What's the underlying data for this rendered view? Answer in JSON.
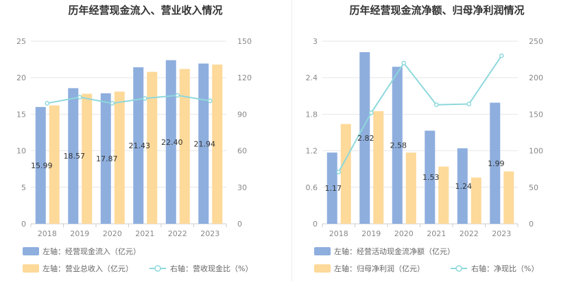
{
  "charts": [
    {
      "title": "历年经营现金流入、营业收入情况",
      "legend": {
        "bar1": "左轴：经营现金流入（亿元）",
        "bar2": "左轴：营业总收入（亿元）",
        "line": "右轴：营收现金比（%）"
      }
    },
    {
      "title": "历年经营现金流净额、归母净利润情况",
      "legend": {
        "bar1": "左轴：经营活动现金流净额（亿元）",
        "bar2": "左轴：归母净利润（亿元）",
        "line": "右轴：净现比（%）"
      }
    }
  ],
  "colors": {
    "bar1": "#8eaede",
    "bar2": "#fdd99a",
    "line": "#8dd8dc",
    "grid": "#e6e6e6",
    "axis": "#cccccc"
  },
  "chart_data": [
    {
      "type": "bar",
      "title": "历年经营现金流入、营业收入情况",
      "categories": [
        "2018",
        "2019",
        "2020",
        "2021",
        "2022",
        "2023"
      ],
      "series": [
        {
          "name": "左轴：经营现金流入（亿元）",
          "axis": "left",
          "values": [
            15.99,
            18.57,
            17.87,
            21.43,
            22.4,
            21.94
          ],
          "labels": [
            "15.99",
            "18.57",
            "17.87",
            "21.43",
            "22.40",
            "21.94"
          ]
        },
        {
          "name": "左轴：营业总收入（亿元）",
          "axis": "left",
          "values": [
            16.2,
            17.8,
            18.1,
            20.8,
            21.2,
            21.8
          ]
        },
        {
          "name": "右轴：营收现金比（%）",
          "axis": "right",
          "type": "line",
          "values": [
            99,
            104,
            99,
            103,
            105.5,
            101
          ]
        }
      ],
      "y_left": {
        "range": [
          0,
          25
        ],
        "ticks": [
          "0",
          "5",
          "10",
          "15",
          "20",
          "25"
        ]
      },
      "y_right": {
        "range": [
          0,
          150
        ],
        "ticks": [
          "0",
          "30",
          "60",
          "90",
          "120",
          "150"
        ]
      },
      "grid": true,
      "legend_position": "bottom-left"
    },
    {
      "type": "bar",
      "title": "历年经营现金流净额、归母净利润情况",
      "categories": [
        "2018",
        "2019",
        "2020",
        "2021",
        "2022",
        "2023"
      ],
      "series": [
        {
          "name": "左轴：经营活动现金流净额（亿元）",
          "axis": "left",
          "values": [
            1.17,
            2.82,
            2.58,
            1.53,
            1.24,
            1.99
          ],
          "labels": [
            "1.17",
            "2.82",
            "2.58",
            "1.53",
            "1.24",
            "1.99"
          ]
        },
        {
          "name": "左轴：归母净利润（亿元）",
          "axis": "left",
          "values": [
            1.64,
            1.85,
            1.17,
            0.94,
            0.76,
            0.86
          ]
        },
        {
          "name": "右轴：净现比（%）",
          "axis": "right",
          "type": "line",
          "values": [
            71,
            152,
            220,
            163,
            164,
            230
          ]
        }
      ],
      "y_left": {
        "range": [
          0,
          3
        ],
        "ticks": [
          "0",
          "0.6",
          "1.2",
          "1.8",
          "2.4",
          "3"
        ]
      },
      "y_right": {
        "range": [
          0,
          250
        ],
        "ticks": [
          "0",
          "50",
          "100",
          "150",
          "200",
          "250"
        ]
      },
      "grid": true,
      "legend_position": "bottom-left"
    }
  ]
}
